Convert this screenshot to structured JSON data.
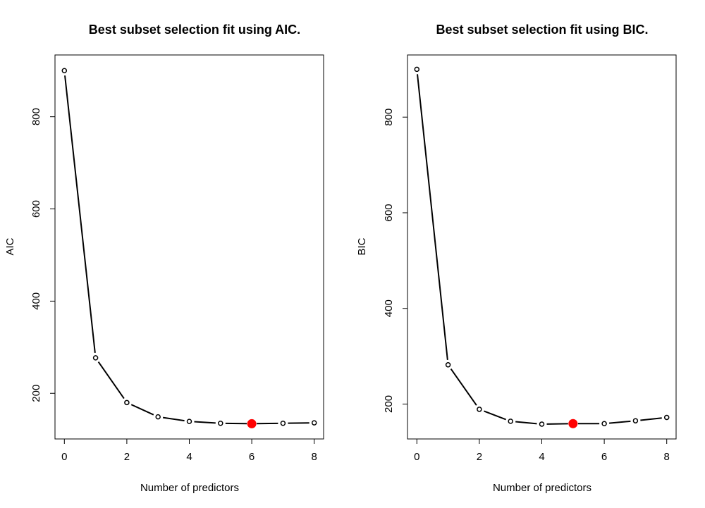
{
  "chart_data": [
    {
      "type": "line",
      "title": "Best subset selection fit using AIC.",
      "xlabel": "Number of predictors",
      "ylabel": "AIC",
      "x": [
        0,
        1,
        2,
        3,
        4,
        5,
        6,
        7,
        8
      ],
      "series": [
        {
          "values": [
            900,
            277,
            180,
            149,
            139,
            135,
            134,
            135,
            136
          ]
        }
      ],
      "highlight": {
        "x": 6,
        "y": 134,
        "color": "#ff0000"
      },
      "xlim": [
        -0.3,
        8.3
      ],
      "ylim": [
        101,
        934
      ],
      "xticks": [
        0,
        2,
        4,
        6,
        8
      ],
      "yticks": [
        200,
        400,
        600,
        800
      ],
      "grid": false,
      "line_color": "#000000"
    },
    {
      "type": "line",
      "title": "Best subset selection fit using BIC.",
      "xlabel": "Number of predictors",
      "ylabel": "BIC",
      "x": [
        0,
        1,
        2,
        3,
        4,
        5,
        6,
        7,
        8
      ],
      "series": [
        {
          "values": [
            900,
            282,
            189,
            164,
            158,
            159,
            159,
            165,
            172
          ]
        }
      ],
      "highlight": {
        "x": 5,
        "y": 159,
        "color": "#ff0000"
      },
      "xlim": [
        -0.3,
        8.3
      ],
      "ylim": [
        127,
        930
      ],
      "xticks": [
        0,
        2,
        4,
        6,
        8
      ],
      "yticks": [
        200,
        400,
        600,
        800
      ],
      "grid": false,
      "line_color": "#000000"
    }
  ]
}
